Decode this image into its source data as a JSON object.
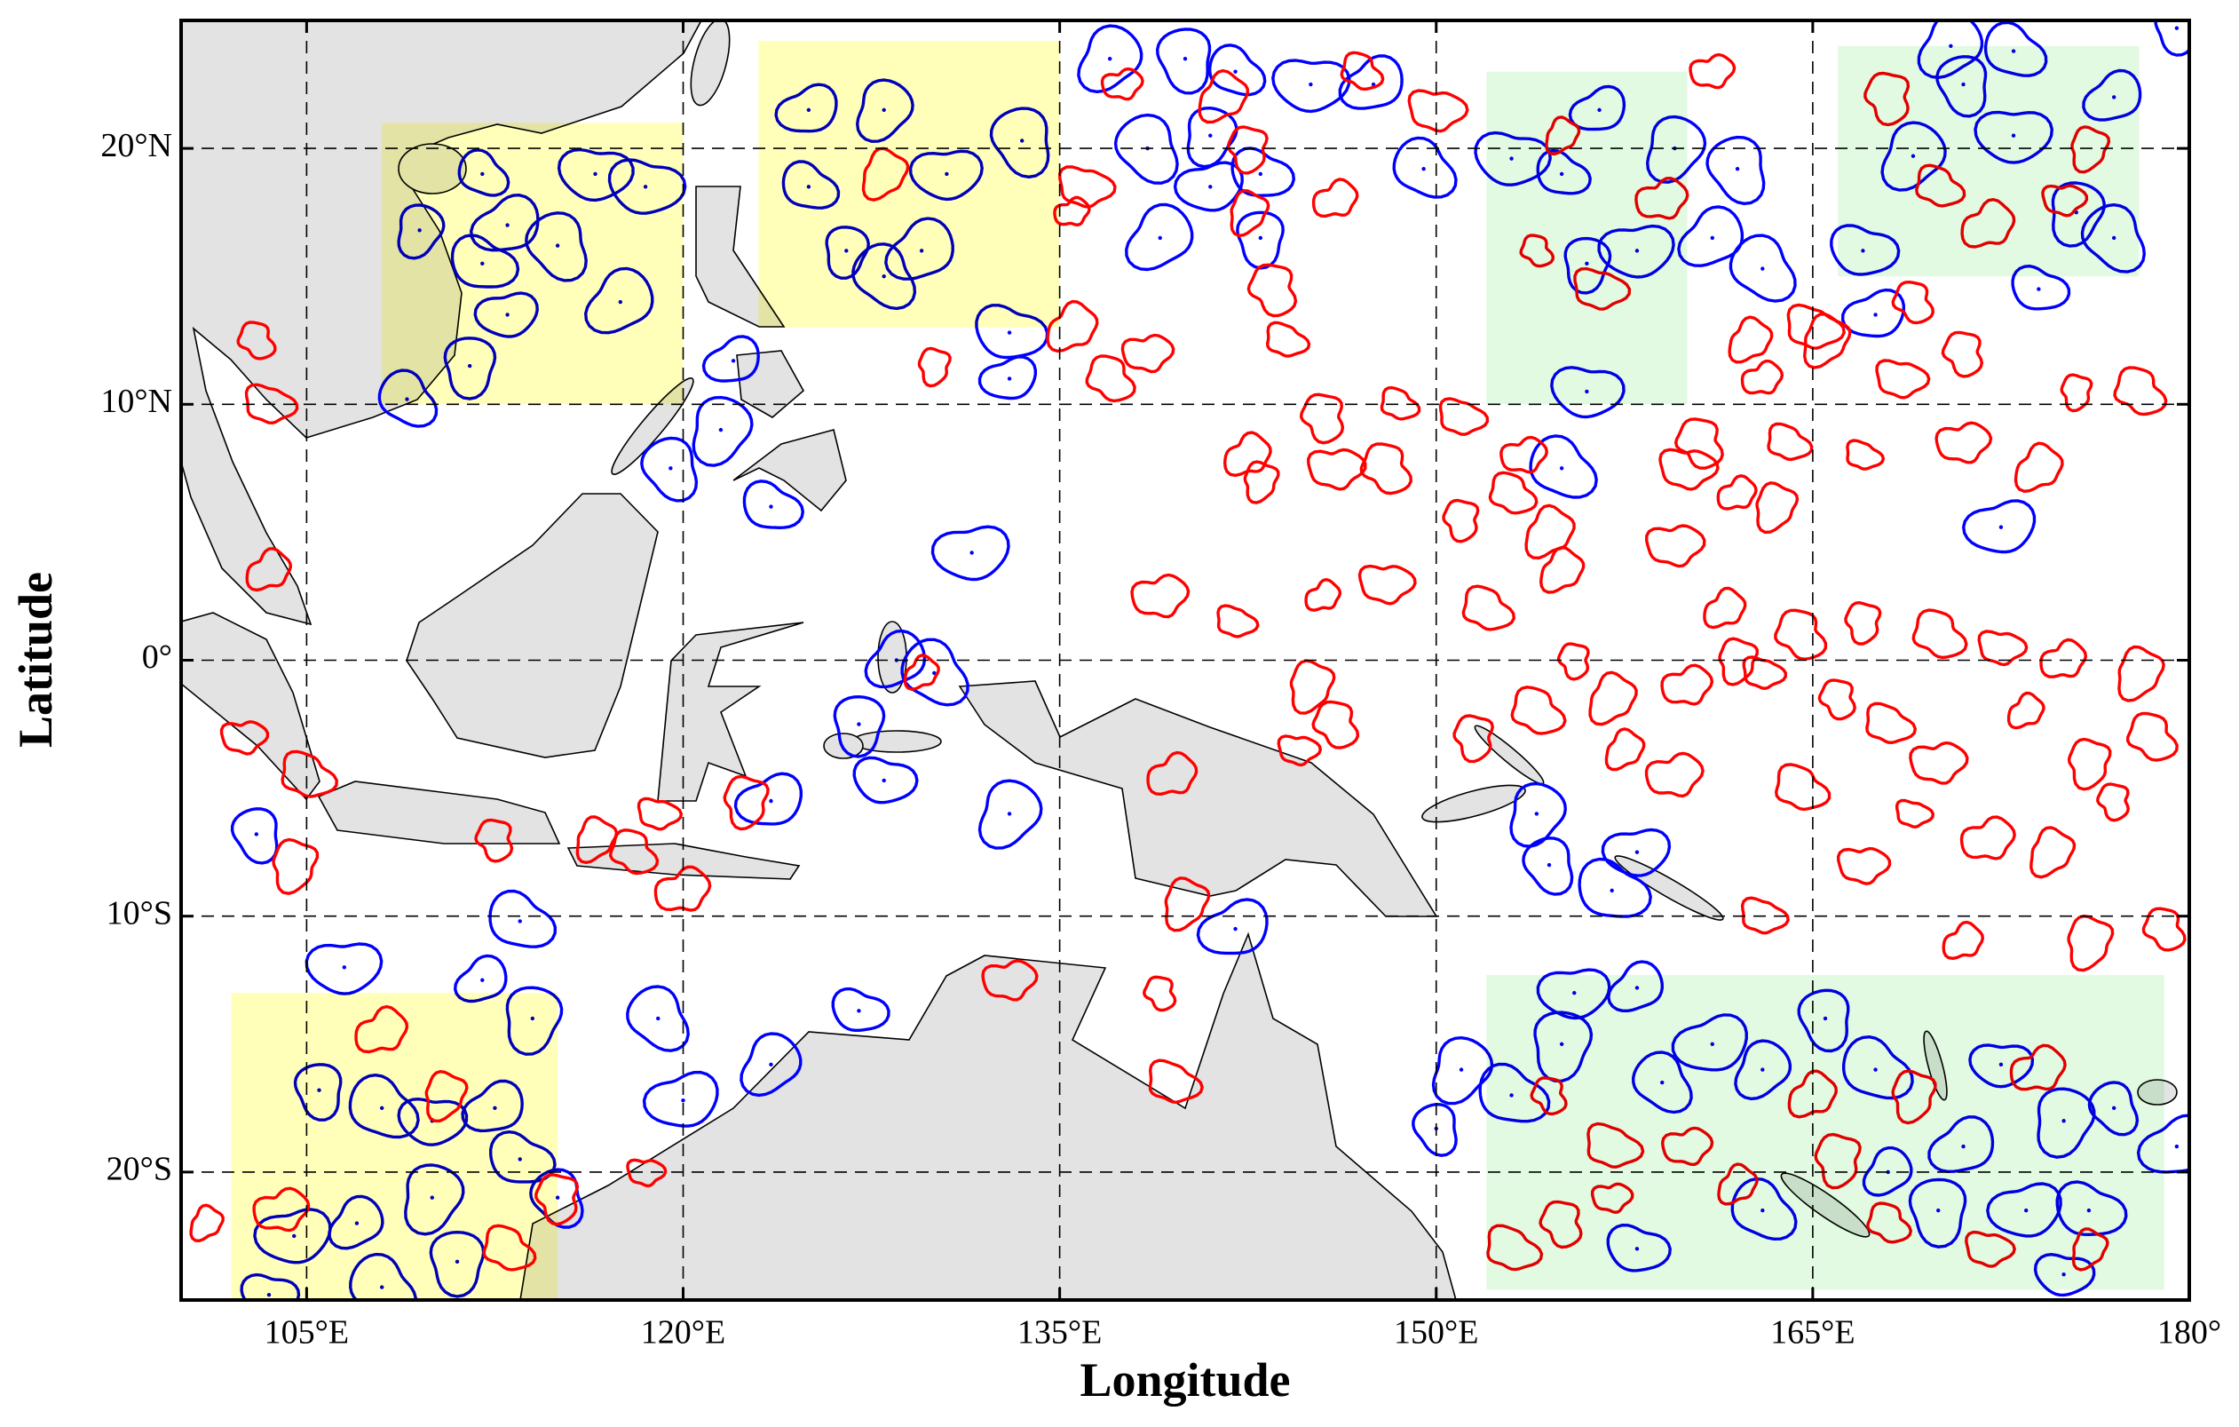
{
  "chart_data": {
    "type": "map",
    "xlabel": "Longitude",
    "ylabel": "Latitude",
    "xlim": [
      100,
      180
    ],
    "ylim": [
      -25,
      25
    ],
    "xticks": [
      {
        "value": 105,
        "label": "105°E"
      },
      {
        "value": 120,
        "label": "120°E"
      },
      {
        "value": 135,
        "label": "135°E"
      },
      {
        "value": 150,
        "label": "150°E"
      },
      {
        "value": 165,
        "label": "165°E"
      },
      {
        "value": 180,
        "label": "180°"
      }
    ],
    "yticks": [
      {
        "value": 20,
        "label": "20°N"
      },
      {
        "value": 10,
        "label": "10°N"
      },
      {
        "value": 0,
        "label": "0°"
      },
      {
        "value": -10,
        "label": "10°S"
      },
      {
        "value": -20,
        "label": "20°S"
      }
    ],
    "grid": true,
    "regions": [
      {
        "color": "#ffff80",
        "x": [
          108,
          120
        ],
        "y": [
          10,
          21
        ]
      },
      {
        "color": "#ffff80",
        "x": [
          123,
          135
        ],
        "y": [
          13,
          24.2
        ]
      },
      {
        "color": "#ffff80",
        "x": [
          102,
          115
        ],
        "y": [
          -25,
          -13
        ]
      },
      {
        "color": "#c8f5c8",
        "x": [
          152,
          160
        ],
        "y": [
          10,
          23
        ]
      },
      {
        "color": "#c8f5c8",
        "x": [
          166,
          178
        ],
        "y": [
          15,
          24
        ]
      },
      {
        "color": "#c8f5c8",
        "x": [
          152,
          179
        ],
        "y": [
          -24.6,
          -12.3
        ]
      }
    ],
    "series": [
      {
        "color": "#0000ff",
        "x": [
          112,
          116.5,
          113,
          109.5,
          115,
          112,
          113,
          117.5,
          111.5,
          109,
          118.5,
          125,
          128,
          133.5,
          125,
          130.5,
          129.5,
          126.5,
          128,
          133,
          133,
          137,
          140,
          142,
          145,
          147.5,
          141,
          138.5,
          143,
          141,
          139,
          143,
          149.5,
          153,
          156.5,
          159.5,
          162,
          155,
          158,
          161,
          156,
          163,
          167,
          167.5,
          169,
          171,
          173,
          173,
          177,
          175.5,
          177,
          174,
          172.5,
          170.5,
          179.5,
          155,
          156,
          122,
          121.5,
          119.5,
          123.5,
          131.5,
          128.5,
          127,
          130,
          128,
          123.5,
          133,
          103,
          113.5,
          106.5,
          112,
          114,
          119,
          127,
          120,
          123.5,
          105.5,
          108,
          110,
          112.5,
          110,
          115,
          113.5,
          104.5,
          107,
          111,
          108,
          103.5,
          142,
          151,
          150,
          153,
          155.5,
          158,
          155,
          159,
          158,
          161,
          163,
          165.5,
          167.5,
          172.5,
          171,
          175,
          177,
          176,
          173.5,
          168,
          170,
          163,
          175,
          179.5,
          154,
          154.5,
          157,
          158
        ],
        "y": [
          19,
          19,
          17,
          16.8,
          16.2,
          15.5,
          13.5,
          14,
          11.5,
          10.2,
          18.5,
          21.5,
          21.5,
          20.3,
          18.5,
          19,
          16,
          16,
          15,
          12.8,
          11,
          23.5,
          23.5,
          23,
          22.5,
          22.5,
          20.5,
          20,
          19,
          18.5,
          16.5,
          16.5,
          19.2,
          19.6,
          21.5,
          20,
          19.2,
          19,
          16,
          16.5,
          15.5,
          15.3,
          16,
          13.5,
          19.7,
          22.5,
          23.8,
          20.5,
          22,
          17.5,
          16.5,
          14.5,
          5.2,
          24,
          24.7,
          7.5,
          10.5,
          11.7,
          9,
          7.5,
          6,
          4.2,
          0,
          -2.5,
          -0.5,
          -4.7,
          -5.5,
          -6,
          -6.8,
          -10.2,
          -12,
          -12.5,
          -14,
          -14,
          -13.7,
          -17.2,
          -15.8,
          -16.8,
          -17.5,
          -18,
          -17.5,
          -21,
          -21,
          -19.5,
          -22.5,
          -22,
          -23.5,
          -24.5,
          -24.8,
          -10.5,
          -16,
          -18.3,
          -17,
          -13,
          -12.8,
          -15,
          -16.5,
          -23,
          -15,
          -16,
          -14,
          -16,
          -15.8,
          -19,
          -18,
          -17.5,
          -21.5,
          -21.5,
          -20,
          -21.5,
          -21.5,
          -24,
          -19,
          -6,
          -8,
          -9,
          -7.5
        ]
      },
      {
        "color": "#ff0000",
        "x": [
          137.5,
          141.5,
          142.5,
          147,
          150,
          146,
          142.5,
          143.5,
          144,
          138.5,
          135.5,
          130,
          137,
          136,
          135.5,
          128,
          145.5,
          148.5,
          146,
          142.5,
          143,
          148,
          151,
          153.5,
          154.5,
          151,
          153,
          160,
          162,
          163.5,
          160.5,
          167,
          171,
          174,
          175.5,
          178,
          168.5,
          163,
          165.5,
          171,
          164,
          159.5,
          161.5,
          162,
          164.5,
          163,
          160,
          157,
          155.5,
          152,
          148,
          145.5,
          145,
          146,
          142,
          139,
          155,
          167,
          170,
          172.5,
          175,
          178,
          166,
          168,
          170,
          173.5,
          176,
          178.5,
          169,
          172,
          174.5,
          177,
          164.5,
          167,
          171,
          176,
          179,
          163,
          159.5,
          157.5,
          151.5,
          154,
          144.5,
          139.5,
          140,
          139,
          139.5,
          133,
          129.5,
          122.5,
          118,
          119,
          120,
          116.5,
          112.5,
          105,
          102.5,
          103.5,
          104.5,
          103,
          103.5,
          104,
          101,
          115,
          113,
          118.5,
          108,
          110.5,
          154.5,
          157,
          160,
          162,
          166,
          168,
          172,
          174,
          176,
          155,
          153,
          157,
          165,
          169,
          154,
          156.5,
          159,
          155,
          168,
          170,
          175,
          172,
          176,
          169,
          165,
          161,
          162.5
        ],
        "y": [
          22.5,
          22,
          20,
          23,
          21.5,
          18,
          17.5,
          14.5,
          12.5,
          12,
          13,
          11.5,
          11,
          18.5,
          17.5,
          19,
          9.5,
          10,
          7.5,
          8,
          7,
          7.5,
          9.5,
          8,
          5,
          5.5,
          6.5,
          7.5,
          6.5,
          6,
          8.5,
          8,
          8.5,
          7.5,
          10.5,
          10.5,
          11,
          11,
          12.5,
          12,
          8.5,
          4.5,
          2,
          0,
          1,
          -0.5,
          -1,
          -1.5,
          0,
          2,
          3,
          2.5,
          -1,
          -2.5,
          1.5,
          2.5,
          3.5,
          1.5,
          1,
          0.5,
          0,
          -0.5,
          -1.5,
          -2.5,
          -4,
          -2,
          -4,
          -3,
          -6,
          -7,
          -7.5,
          -5.5,
          -5,
          -8,
          -11,
          -11,
          -10.5,
          -10,
          -4.5,
          -3.5,
          -3,
          -2,
          -3.5,
          -4.5,
          -9.5,
          -13,
          -16.5,
          -12.5,
          -0.5,
          -5.5,
          -7.5,
          -6,
          -9,
          -7,
          -7,
          -4.5,
          -3,
          3.5,
          -8,
          12.5,
          10,
          -21.5,
          -22,
          -21,
          -23,
          -20,
          -14.5,
          -17,
          -17,
          -19,
          -19,
          -20.5,
          -19.5,
          -22,
          -23,
          -16,
          -23,
          -22,
          -23,
          -21,
          -17,
          -17,
          16,
          14.5,
          18,
          20.5,
          22,
          18.5,
          18,
          17,
          20,
          14,
          13,
          23,
          12.5
        ]
      }
    ]
  }
}
